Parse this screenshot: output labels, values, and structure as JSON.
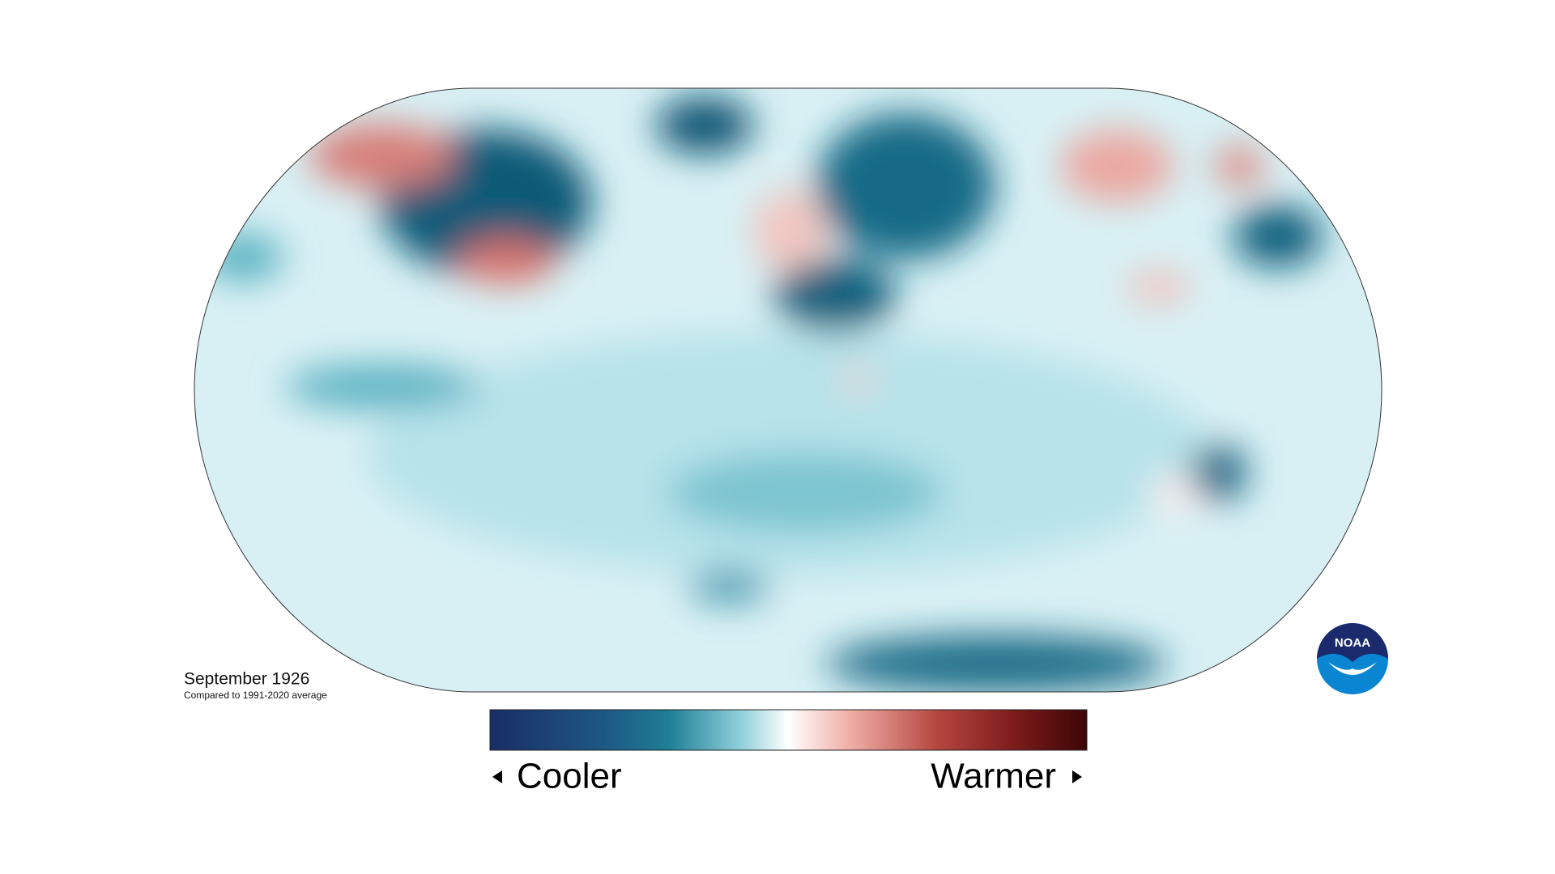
{
  "header": {
    "title": "September 1926",
    "subtitle": "Compared to 1991-2020 average"
  },
  "legend": {
    "low_label": "Cooler",
    "high_label": "Warmer"
  },
  "logo": {
    "text": "NOAA"
  }
}
